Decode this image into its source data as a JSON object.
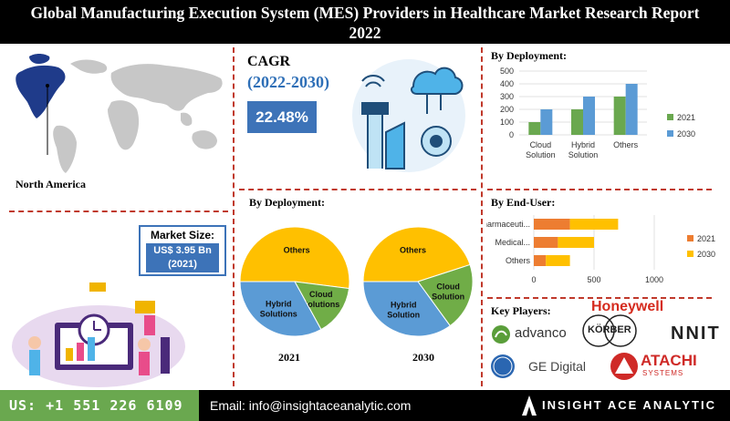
{
  "header": {
    "title_line1": "Global Manufacturing Execution System (MES) Providers in Healthcare Market  Research Report",
    "title_line2": "2022"
  },
  "region": {
    "label": "North America"
  },
  "cagr": {
    "label": "CAGR",
    "period": "(2022-2030)",
    "value": "22.48%"
  },
  "market_size": {
    "title": "Market Size:",
    "line1": "US$ 3.95 Bn",
    "line2": "(2021)"
  },
  "sections": {
    "deployment_bar_title": "By Deployment:",
    "deployment_pie_title": "By Deployment:",
    "end_user_title": "By End-User:"
  },
  "key_players": {
    "title": "Key Players:",
    "names": [
      "Honeywell",
      "advanco",
      "KÖRBER",
      "NNIT",
      "GE Digital",
      "ATACHI",
      "SYSTEMS"
    ]
  },
  "footer": {
    "phone": "US: +1 551 226 6109",
    "email": "Email: info@insightaceanalytic.com",
    "brand": "INSIGHT ACE ANALYTIC"
  },
  "colors": {
    "series_2021": "#6aa84f",
    "series_2030": "#5b9bd5",
    "end_user_2021": "#ed7d31",
    "end_user_2030": "#ffc000",
    "pie_others": "#ffc000",
    "pie_cloud": "#70ad47",
    "pie_hybrid": "#5b9bd5",
    "accent_blue": "#3d73b8",
    "divider_red": "#c0392b"
  },
  "chart_data": [
    {
      "type": "bar",
      "title": "By Deployment:",
      "categories": [
        "Cloud Solution",
        "Hybrid Solution",
        "Others"
      ],
      "series": [
        {
          "name": "2021",
          "values": [
            100,
            200,
            300
          ]
        },
        {
          "name": "2030",
          "values": [
            200,
            300,
            400
          ]
        }
      ],
      "ylim": [
        0,
        500
      ],
      "yticks": [
        0,
        100,
        200,
        300,
        400,
        500
      ],
      "legend": "right"
    },
    {
      "type": "pie",
      "title": "By Deployment:",
      "year": "2021",
      "slices": [
        {
          "label": "Others",
          "value": 52
        },
        {
          "label": "Cloud Solutions",
          "value": 15
        },
        {
          "label": "Hybrid Solutions",
          "value": 33
        }
      ]
    },
    {
      "type": "pie",
      "title": "By Deployment:",
      "year": "2030",
      "slices": [
        {
          "label": "Others",
          "value": 45
        },
        {
          "label": "Cloud Solution",
          "value": 20
        },
        {
          "label": "Hybrid Solution",
          "value": 35
        }
      ]
    },
    {
      "type": "bar",
      "orientation": "horizontal",
      "stacked": true,
      "title": "By End-User:",
      "categories": [
        "Pharmaceuti...",
        "Medical...",
        "Others"
      ],
      "series": [
        {
          "name": "2021",
          "values": [
            300,
            200,
            100
          ]
        },
        {
          "name": "2030",
          "values": [
            400,
            300,
            200
          ]
        }
      ],
      "xlim": [
        0,
        1000
      ],
      "xticks": [
        0,
        500,
        1000
      ],
      "legend": "right"
    }
  ]
}
